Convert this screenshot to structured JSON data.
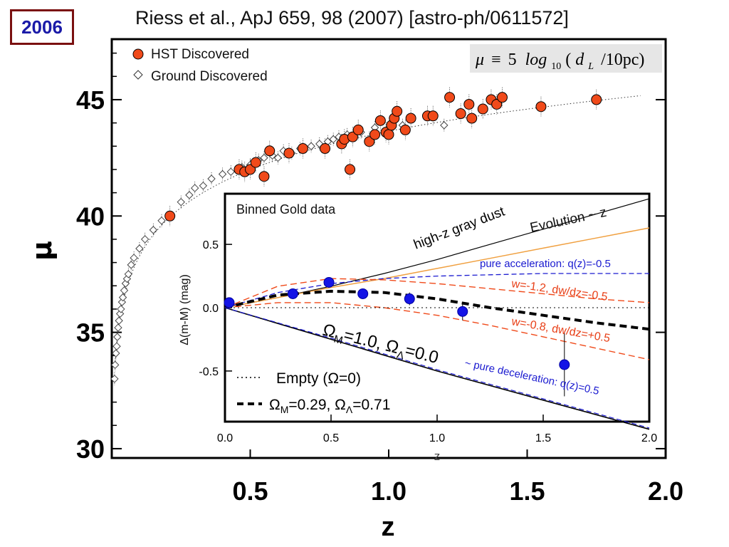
{
  "badge": {
    "year": "2006"
  },
  "reference": "Riess et al., ApJ 659, 98 (2007) [astro-ph/0611572]",
  "formula": {
    "mu": "μ",
    "equiv": "≡",
    "five": "5",
    "log": "log",
    "sub10": "10",
    "d": "d",
    "subL": "L",
    "rest": "/10pc)",
    "open": "("
  },
  "colors": {
    "hst": "#f04a1a",
    "gold_bins": "#1414e6",
    "accel": "#1a1ad0",
    "wmodels": "#f04a1a",
    "evolution": "#f0a040",
    "dust": "#000000"
  },
  "chart_data": [
    {
      "type": "scatter",
      "xlabel": "z",
      "ylabel": "μ",
      "xlim": [
        0,
        2.0
      ],
      "ylim": [
        29.6,
        47.6
      ],
      "xticks": [
        {
          "v": 0.5,
          "label": "0.5"
        },
        {
          "v": 1.0,
          "label": "1.0"
        },
        {
          "v": 1.5,
          "label": "1.5"
        },
        {
          "v": 2.0,
          "label": "2.0"
        }
      ],
      "yticks": [
        {
          "v": 30,
          "label": "30"
        },
        {
          "v": 35,
          "label": "35"
        },
        {
          "v": 40,
          "label": "40"
        },
        {
          "v": 45,
          "label": "45"
        }
      ],
      "legend": [
        {
          "name": "HST Discovered",
          "marker": "filled-circle"
        },
        {
          "name": "Ground Discovered",
          "marker": "open-diamond"
        }
      ],
      "series": [
        {
          "name": "HST Discovered",
          "points": [
            [
              0.21,
              40.0
            ],
            [
              0.46,
              42.0
            ],
            [
              0.48,
              41.9
            ],
            [
              0.5,
              42.0
            ],
            [
              0.52,
              42.3
            ],
            [
              0.55,
              41.7
            ],
            [
              0.57,
              42.8
            ],
            [
              0.64,
              42.7
            ],
            [
              0.69,
              42.9
            ],
            [
              0.77,
              42.9
            ],
            [
              0.83,
              43.1
            ],
            [
              0.84,
              43.3
            ],
            [
              0.86,
              42.0
            ],
            [
              0.87,
              43.4
            ],
            [
              0.89,
              43.7
            ],
            [
              0.93,
              43.2
            ],
            [
              0.95,
              43.5
            ],
            [
              0.97,
              44.1
            ],
            [
              0.99,
              43.6
            ],
            [
              1.0,
              43.5
            ],
            [
              1.01,
              43.9
            ],
            [
              1.02,
              44.2
            ],
            [
              1.03,
              44.5
            ],
            [
              1.06,
              43.7
            ],
            [
              1.08,
              44.2
            ],
            [
              1.14,
              44.3
            ],
            [
              1.16,
              44.3
            ],
            [
              1.22,
              45.1
            ],
            [
              1.26,
              44.4
            ],
            [
              1.29,
              44.8
            ],
            [
              1.3,
              44.2
            ],
            [
              1.34,
              44.6
            ],
            [
              1.37,
              45.0
            ],
            [
              1.39,
              44.8
            ],
            [
              1.41,
              45.1
            ],
            [
              1.55,
              44.7
            ],
            [
              1.75,
              45.0
            ]
          ]
        },
        {
          "name": "Ground Discovered",
          "points": [
            [
              0.01,
              33.0
            ],
            [
              0.012,
              33.6
            ],
            [
              0.015,
              34.1
            ],
            [
              0.018,
              34.4
            ],
            [
              0.02,
              34.8
            ],
            [
              0.023,
              35.2
            ],
            [
              0.026,
              35.5
            ],
            [
              0.03,
              35.8
            ],
            [
              0.033,
              36.0
            ],
            [
              0.037,
              36.3
            ],
            [
              0.04,
              36.5
            ],
            [
              0.045,
              36.8
            ],
            [
              0.05,
              37.1
            ],
            [
              0.055,
              37.3
            ],
            [
              0.06,
              37.5
            ],
            [
              0.07,
              37.9
            ],
            [
              0.08,
              38.2
            ],
            [
              0.1,
              38.6
            ],
            [
              0.12,
              39.0
            ],
            [
              0.15,
              39.4
            ],
            [
              0.18,
              39.8
            ],
            [
              0.25,
              40.6
            ],
            [
              0.28,
              40.9
            ],
            [
              0.3,
              41.2
            ],
            [
              0.33,
              41.3
            ],
            [
              0.36,
              41.6
            ],
            [
              0.4,
              41.8
            ],
            [
              0.43,
              41.9
            ],
            [
              0.47,
              42.1
            ],
            [
              0.5,
              42.2
            ],
            [
              0.53,
              42.4
            ],
            [
              0.55,
              42.5
            ],
            [
              0.58,
              42.6
            ],
            [
              0.6,
              42.5
            ],
            [
              0.62,
              42.8
            ],
            [
              0.65,
              42.7
            ],
            [
              0.68,
              42.9
            ],
            [
              0.72,
              43.0
            ],
            [
              0.75,
              43.1
            ],
            [
              0.78,
              43.2
            ],
            [
              0.8,
              43.3
            ],
            [
              0.82,
              43.4
            ],
            [
              0.85,
              43.5
            ],
            [
              0.9,
              43.6
            ],
            [
              0.95,
              43.8
            ],
            [
              1.05,
              43.9
            ],
            [
              1.2,
              43.9
            ]
          ]
        }
      ],
      "reference_curve": "dotted"
    },
    {
      "type": "line",
      "title": "Binned Gold data",
      "xlabel": "z",
      "ylabel": "Δ(m-M) (mag)",
      "xlim": [
        0,
        2.0
      ],
      "ylim": [
        -0.9,
        0.9
      ],
      "xticks": [
        {
          "v": 0.0,
          "label": "0.0"
        },
        {
          "v": 0.5,
          "label": "0.5"
        },
        {
          "v": 1.0,
          "label": "1.0"
        },
        {
          "v": 1.5,
          "label": "1.5"
        },
        {
          "v": 2.0,
          "label": "2.0"
        }
      ],
      "yticks": [
        {
          "v": -0.5,
          "label": "-0.5"
        },
        {
          "v": 0.0,
          "label": "0.0"
        },
        {
          "v": 0.5,
          "label": "0.5"
        }
      ],
      "gold_bins": [
        {
          "z": 0.02,
          "dm": 0.04,
          "err": 0.04
        },
        {
          "z": 0.32,
          "dm": 0.11,
          "err": 0.04
        },
        {
          "z": 0.49,
          "dm": 0.2,
          "err": 0.04
        },
        {
          "z": 0.65,
          "dm": 0.11,
          "err": 0.04
        },
        {
          "z": 0.87,
          "dm": 0.07,
          "err": 0.05
        },
        {
          "z": 1.12,
          "dm": -0.03,
          "err": 0.07
        },
        {
          "z": 1.6,
          "dm": -0.45,
          "err": 0.25
        }
      ],
      "series": [
        {
          "name": "high-z gray dust",
          "x": [
            0,
            0.25,
            0.5,
            0.75,
            1.0,
            1.25,
            1.5,
            1.75,
            2.0
          ],
          "y": [
            0,
            0.08,
            0.17,
            0.27,
            0.38,
            0.5,
            0.62,
            0.74,
            0.86
          ]
        },
        {
          "name": "Evolution ~ z",
          "x": [
            0,
            0.25,
            0.5,
            0.75,
            1.0,
            1.25,
            1.5,
            1.75,
            2.0
          ],
          "y": [
            0,
            0.08,
            0.16,
            0.23,
            0.31,
            0.39,
            0.47,
            0.55,
            0.63
          ]
        },
        {
          "name": "pure acceleration: q(z)=-0.5",
          "x": [
            0,
            0.25,
            0.5,
            0.75,
            1.0,
            1.25,
            1.5,
            1.75,
            2.0
          ],
          "y": [
            0,
            0.12,
            0.19,
            0.23,
            0.25,
            0.26,
            0.27,
            0.27,
            0.27
          ]
        },
        {
          "name": "w=-1.2, dw/dz=-0.5",
          "x": [
            0,
            0.25,
            0.5,
            0.75,
            1.0,
            1.25,
            1.5,
            1.75,
            2.0
          ],
          "y": [
            0,
            0.17,
            0.23,
            0.22,
            0.19,
            0.15,
            0.11,
            0.07,
            0.04
          ]
        },
        {
          "name": "w=-0.8, dw/dz=+0.5",
          "x": [
            0,
            0.25,
            0.5,
            0.75,
            1.0,
            1.25,
            1.5,
            1.75,
            2.0
          ],
          "y": [
            0,
            0.04,
            0.04,
            0.0,
            -0.06,
            -0.14,
            -0.23,
            -0.32,
            -0.41
          ]
        },
        {
          "name": "ΩM=0.29, ΩΛ=0.71",
          "x": [
            0,
            0.25,
            0.5,
            0.75,
            1.0,
            1.25,
            1.5,
            1.75,
            2.0
          ],
          "y": [
            0,
            0.1,
            0.13,
            0.12,
            0.07,
            0.0,
            -0.06,
            -0.12,
            -0.17
          ]
        },
        {
          "name": "Empty (Ω=0)",
          "x": [
            0,
            2.0
          ],
          "y": [
            0,
            0
          ]
        },
        {
          "name": "ΩM=1.0, ΩΛ=0.0",
          "x": [
            0,
            0.5,
            1.0,
            1.5,
            2.0
          ],
          "y": [
            0,
            -0.25,
            -0.5,
            -0.73,
            -0.96
          ]
        },
        {
          "name": "pure deceleration: q(z)=0.5",
          "x": [
            0,
            0.5,
            1.0,
            1.5,
            2.0
          ],
          "y": [
            0,
            -0.24,
            -0.49,
            -0.72,
            -0.95
          ]
        }
      ],
      "labels": {
        "dust": "high-z gray dust",
        "evolution": "Evolution ~ z",
        "accel": "pure acceleration: q(z)=-0.5",
        "w1": "w=-1.2, dw/dz=-0.5",
        "w2": "w=-0.8, dw/dz=+0.5",
        "om_prefix": "Ω",
        "om_sub_m": "M",
        "om_mid": "=1.0, Ω",
        "om_sub_l": "Λ",
        "om_end": "=0.0",
        "decel": "~ pure deceleration: q(z)=0.5",
        "legend_empty": "Empty (Ω=0)",
        "legend_lcdm_a": "Ω",
        "legend_lcdm_b": "=0.29, Ω",
        "legend_lcdm_c": "=0.71",
        "legend_lcdm_subm": "M",
        "legend_lcdm_subl": "Λ"
      }
    }
  ]
}
